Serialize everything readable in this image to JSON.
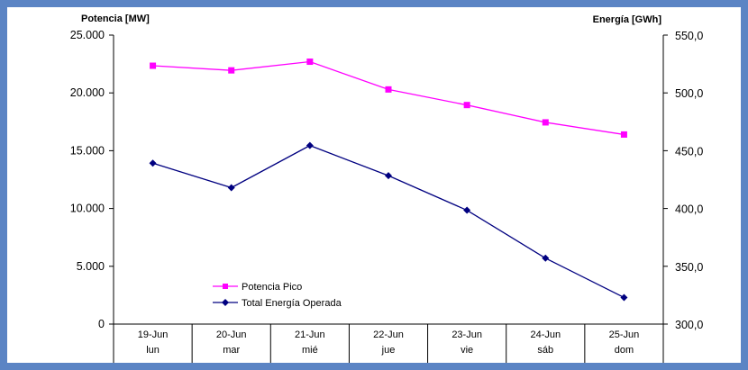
{
  "chart_data": {
    "type": "line",
    "y_left": {
      "title": "Potencia [MW]",
      "range": [
        0,
        25000
      ],
      "ticks": [
        "0",
        "5.000",
        "10.000",
        "15.000",
        "20.000",
        "25.000"
      ]
    },
    "y_right": {
      "title": "Energía [GWh]",
      "range": [
        300,
        550
      ],
      "ticks": [
        "300,0",
        "350,0",
        "400,0",
        "450,0",
        "500,0",
        "550,0"
      ]
    },
    "categories": [
      {
        "date": "19-Jun",
        "day": "lun"
      },
      {
        "date": "20-Jun",
        "day": "mar"
      },
      {
        "date": "21-Jun",
        "day": "mié"
      },
      {
        "date": "22-Jun",
        "day": "jue"
      },
      {
        "date": "23-Jun",
        "day": "vie"
      },
      {
        "date": "24-Jun",
        "day": "sáb"
      },
      {
        "date": "25-Jun",
        "day": "dom"
      }
    ],
    "series": [
      {
        "name": "Potencia Pico",
        "axis": "left",
        "color": "#ff00ff",
        "marker": "square",
        "values": [
          22350,
          21950,
          22700,
          20300,
          18950,
          17450,
          16400
        ]
      },
      {
        "name": "Total Energía Operada",
        "axis": "right",
        "color": "#000080",
        "marker": "diamond",
        "values": [
          439.2,
          418.0,
          454.5,
          428.4,
          398.5,
          357.0,
          323.0
        ]
      }
    ],
    "legend_position": "bottom-left",
    "grid": false
  }
}
